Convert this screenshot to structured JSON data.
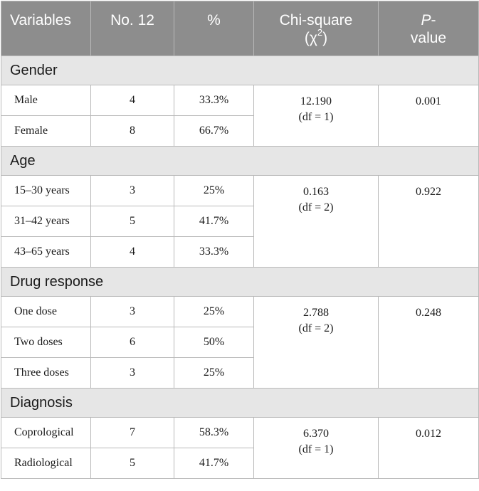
{
  "header": {
    "variables": "Variables",
    "count": "No. 12",
    "percent": "%",
    "chi_line1": "Chi-square",
    "chi_line2_open": "(χ",
    "chi_line2_sup": "2",
    "chi_line2_close": ")",
    "p_line1": "P",
    "p_line1_dash": "-",
    "p_line2": "value"
  },
  "sections": [
    {
      "title": "Gender",
      "rows": [
        {
          "label": "Male",
          "count": "4",
          "percent": "33.3%"
        },
        {
          "label": "Female",
          "count": "8",
          "percent": "66.7%"
        }
      ],
      "chi": "12.190",
      "df": "(df = 1)",
      "p": "0.001"
    },
    {
      "title": "Age",
      "rows": [
        {
          "label": "15–30 years",
          "count": "3",
          "percent": "25%"
        },
        {
          "label": "31–42 years",
          "count": "5",
          "percent": "41.7%"
        },
        {
          "label": "43–65 years",
          "count": "4",
          "percent": "33.3%"
        }
      ],
      "chi": "0.163",
      "df": "(df = 2)",
      "p": "0.922"
    },
    {
      "title": "Drug response",
      "rows": [
        {
          "label": "One dose",
          "count": "3",
          "percent": "25%"
        },
        {
          "label": "Two doses",
          "count": "6",
          "percent": "50%"
        },
        {
          "label": "Three doses",
          "count": "3",
          "percent": "25%"
        }
      ],
      "chi": "2.788",
      "df": "(df = 2)",
      "p": "0.248"
    },
    {
      "title": "Diagnosis",
      "rows": [
        {
          "label": "Coprological",
          "count": "7",
          "percent": "58.3%"
        },
        {
          "label": "Radiological",
          "count": "5",
          "percent": "41.7%"
        }
      ],
      "chi": "6.370",
      "df": "(df = 1)",
      "p": "0.012"
    }
  ]
}
